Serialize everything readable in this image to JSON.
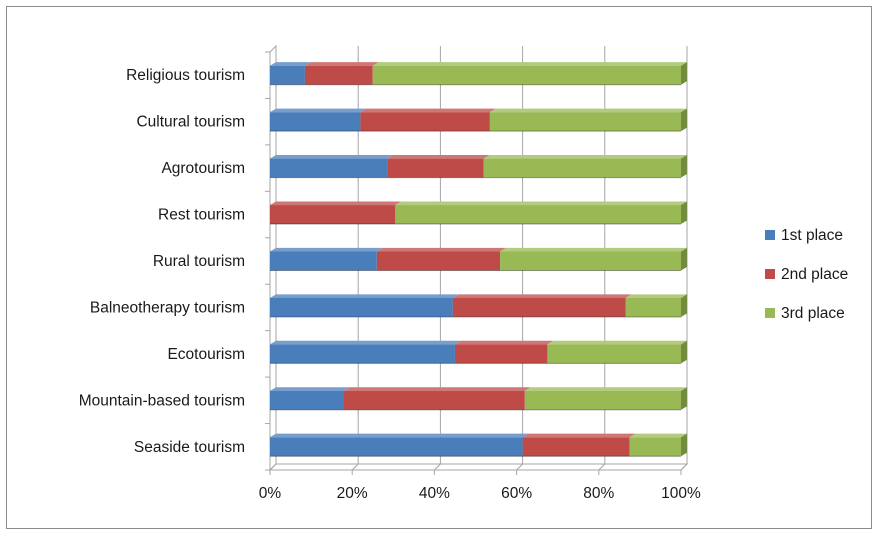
{
  "chart_data": {
    "type": "bar",
    "orientation": "horizontal",
    "stacked": "percent",
    "title": "",
    "xlabel": "",
    "ylabel": "",
    "xlim": [
      0,
      100
    ],
    "x_ticks": [
      "0%",
      "20%",
      "40%",
      "60%",
      "80%",
      "100%"
    ],
    "grid": true,
    "legend_position": "right",
    "categories": [
      "Religious tourism",
      "Cultural tourism",
      "Agrotourism",
      "Rest tourism",
      "Rural tourism",
      "Balneotherapy tourism",
      "Ecotourism",
      "Mountain-based tourism",
      "Seaside tourism"
    ],
    "series": [
      {
        "name": "1st place",
        "color": "#4a7ebb",
        "values": [
          8.5,
          22,
          28.5,
          0,
          26,
          44.5,
          45,
          18,
          61.5
        ]
      },
      {
        "name": "2nd place",
        "color": "#be4b48",
        "values": [
          16.5,
          31.5,
          23.5,
          30.5,
          30,
          42,
          22.5,
          44,
          26
        ]
      },
      {
        "name": "3rd place",
        "color": "#98b954",
        "values": [
          75,
          46.5,
          48,
          69.5,
          44,
          13.5,
          32.5,
          38,
          12.5
        ]
      }
    ]
  }
}
